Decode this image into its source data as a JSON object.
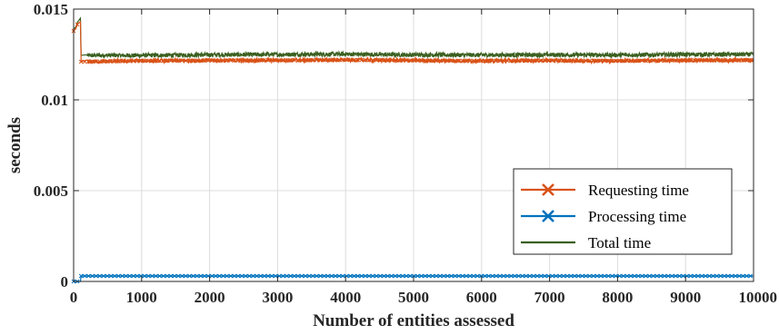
{
  "chart_data": {
    "type": "line",
    "title": "",
    "xlabel": "Number of entities assessed",
    "ylabel": "seconds",
    "xlim": [
      0,
      10000
    ],
    "ylim": [
      0,
      0.015
    ],
    "x_ticks": [
      0,
      1000,
      2000,
      3000,
      4000,
      5000,
      6000,
      7000,
      8000,
      9000,
      10000
    ],
    "x_tick_labels": [
      "0",
      "1000",
      "2000",
      "3000",
      "4000",
      "5000",
      "6000",
      "7000",
      "8000",
      "9000",
      "10000"
    ],
    "y_ticks": [
      0,
      0.005,
      0.01,
      0.015
    ],
    "y_tick_labels": [
      "0",
      "0.005",
      "0.01",
      "0.015"
    ],
    "grid": true,
    "legend_position": "bottom-right",
    "series": [
      {
        "name": "Requesting time",
        "color": "#D95319",
        "marker": "x",
        "points": [
          [
            0,
            0.0138
          ],
          [
            30,
            0.0139
          ],
          [
            60,
            0.0142
          ],
          [
            100,
            0.0143
          ],
          [
            110,
            0.0121
          ],
          [
            1000,
            0.01215
          ],
          [
            2000,
            0.01217
          ],
          [
            3000,
            0.01218
          ],
          [
            4000,
            0.0122
          ],
          [
            5000,
            0.01217
          ],
          [
            6000,
            0.01215
          ],
          [
            7000,
            0.01217
          ],
          [
            8000,
            0.01215
          ],
          [
            9000,
            0.01218
          ],
          [
            10000,
            0.01218
          ]
        ],
        "noise_amplitude": 0.00012
      },
      {
        "name": "Processing time",
        "color": "#0072BD",
        "marker": "x",
        "points": [
          [
            0,
            0.0
          ],
          [
            100,
            0.0
          ],
          [
            110,
            0.0003
          ],
          [
            10000,
            0.0003
          ]
        ],
        "noise_amplitude": 0.0
      },
      {
        "name": "Total time",
        "color": "#3A5F1F",
        "marker": "none",
        "points": [
          [
            0,
            0.0139
          ],
          [
            30,
            0.014
          ],
          [
            60,
            0.0143
          ],
          [
            100,
            0.0145
          ],
          [
            110,
            0.01245
          ],
          [
            1000,
            0.01245
          ],
          [
            2000,
            0.01248
          ],
          [
            3000,
            0.0125
          ],
          [
            4000,
            0.01252
          ],
          [
            5000,
            0.01248
          ],
          [
            6000,
            0.01247
          ],
          [
            7000,
            0.01248
          ],
          [
            8000,
            0.01247
          ],
          [
            9000,
            0.0125
          ],
          [
            10000,
            0.0125
          ]
        ],
        "noise_amplitude": 0.00012
      }
    ]
  }
}
